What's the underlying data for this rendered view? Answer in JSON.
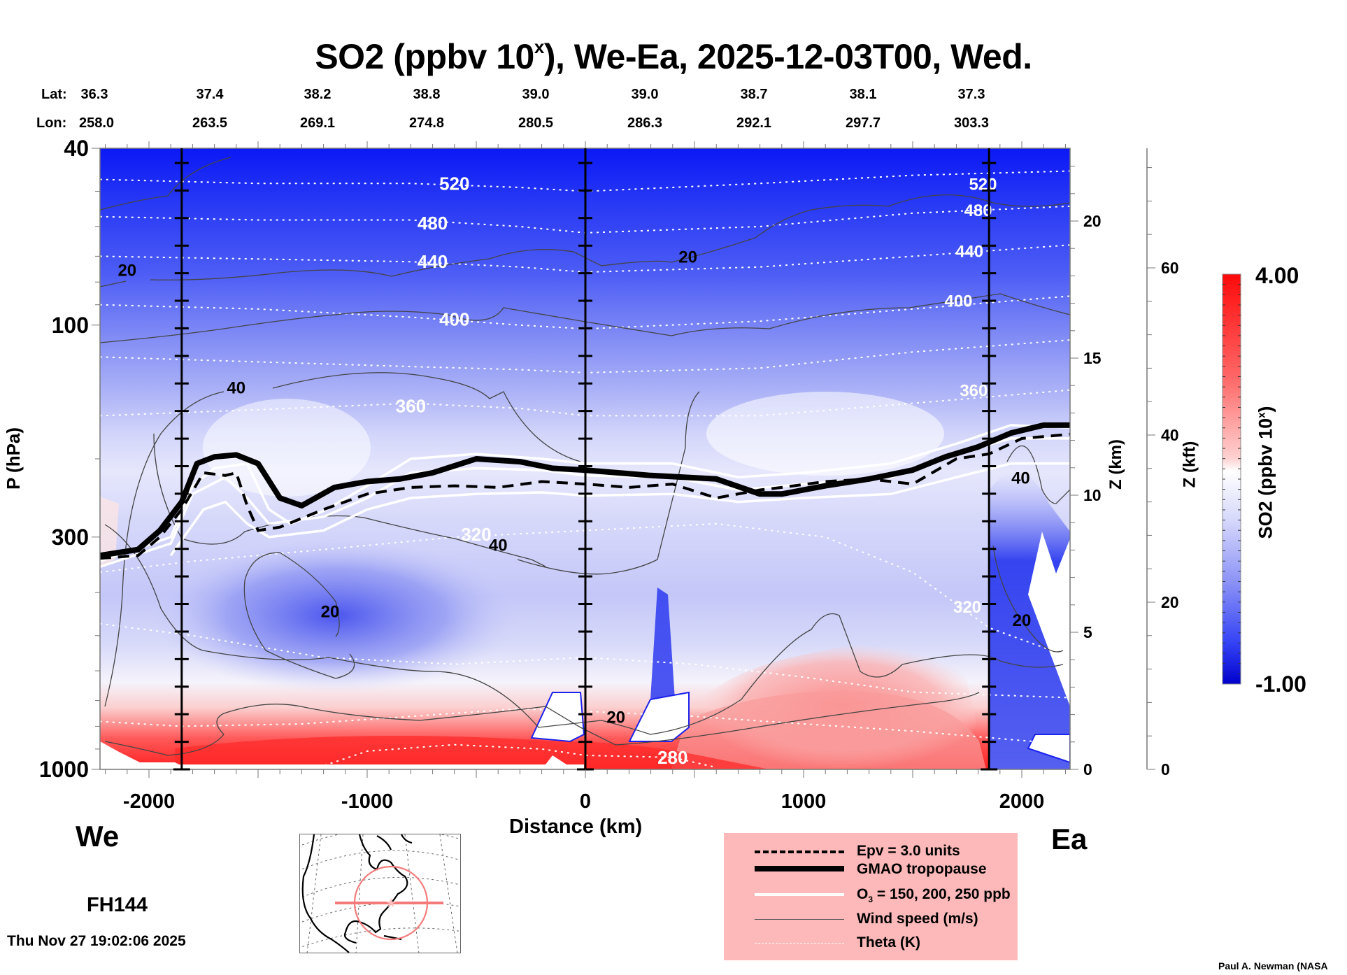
{
  "chart_data": {
    "type": "heatmap",
    "title": "SO2 (ppbv 10",
    "title_sup": "x",
    "title_rest": "), We-Ea, 2025-12-03T00, Wed.",
    "xlabel": "Distance (km)",
    "ylabel": "P (hPa)",
    "y2label": "Z (km)",
    "y3label": "Z (kft)",
    "xlim": [
      -2225,
      2225
    ],
    "ylim_hPa": [
      1000,
      40
    ],
    "yscale": "log",
    "x_ticks": [
      -2000,
      -1000,
      0,
      1000,
      2000
    ],
    "x_tick_labels": [
      "-2000",
      "-1000",
      "0",
      "1000",
      "2000"
    ],
    "y_ticks": [
      40,
      100,
      300,
      1000
    ],
    "y_tick_labels": [
      "40",
      "100",
      "300",
      "1000"
    ],
    "z_km_ticks": [
      0,
      5,
      10,
      15,
      20
    ],
    "z_km_tick_labels": [
      "0",
      "5",
      "10",
      "15",
      "20"
    ],
    "z_kft_ticks": [
      0,
      20,
      40,
      60
    ],
    "z_kft_tick_labels": [
      "0",
      "20",
      "40",
      "60"
    ],
    "colorbar": {
      "label": "SO2 (ppbv 10",
      "label_sup": "x",
      "label_end": ")",
      "min": -1.0,
      "max": 4.0,
      "min_label": "-1.00",
      "max_label": "4.00",
      "low_color": "#0000cc",
      "mid_color": "#ffffff",
      "high_color": "#ff0000",
      "n_levels": 40
    },
    "west_label": "We",
    "east_label": "Ea",
    "forecast_hour": "FH144",
    "lat_label": "Lat:",
    "lon_label": "Lon:",
    "lat": [
      "36.3",
      "37.4",
      "38.2",
      "38.8",
      "39.0",
      "39.0",
      "38.7",
      "38.1",
      "37.3"
    ],
    "lon": [
      "258.0",
      "263.5",
      "269.1",
      "274.8",
      "280.5",
      "286.3",
      "292.1",
      "297.7",
      "303.3"
    ],
    "lat_lon_distance_km": [
      -2225,
      -1725,
      -1320,
      -915,
      -510,
      -100,
      305,
      710,
      1115
    ],
    "vertical_markers_km": [
      -1850,
      0,
      1850
    ],
    "theta_levels": [
      {
        "label": "520",
        "points": [
          [
            -2225,
            47
          ],
          [
            -1500,
            48
          ],
          [
            -800,
            48
          ],
          [
            -300,
            49
          ],
          [
            0,
            50
          ],
          [
            800,
            48
          ],
          [
            1500,
            46
          ],
          [
            2225,
            45
          ]
        ],
        "label_at": [
          -600,
          48
        ]
      },
      {
        "label": "480",
        "points": [
          [
            -2225,
            57
          ],
          [
            -1500,
            58
          ],
          [
            -800,
            58
          ],
          [
            -300,
            60
          ],
          [
            0,
            62
          ],
          [
            800,
            60
          ],
          [
            1500,
            56
          ],
          [
            2225,
            54
          ]
        ],
        "label_at": [
          -700,
          59
        ]
      },
      {
        "label": "440",
        "points": [
          [
            -2225,
            70
          ],
          [
            -1500,
            71
          ],
          [
            -800,
            72
          ],
          [
            -300,
            74
          ],
          [
            0,
            76
          ],
          [
            800,
            74
          ],
          [
            1500,
            70
          ],
          [
            2225,
            66
          ]
        ],
        "label_at": [
          -700,
          72
        ]
      },
      {
        "label": "400",
        "points": [
          [
            -2225,
            90
          ],
          [
            -1500,
            92
          ],
          [
            -800,
            96
          ],
          [
            -300,
            100
          ],
          [
            0,
            102
          ],
          [
            800,
            98
          ],
          [
            1500,
            92
          ],
          [
            2225,
            86
          ]
        ],
        "label_at": [
          -600,
          97
        ]
      },
      {
        "label": "",
        "points": [
          [
            -2225,
            118
          ],
          [
            -1500,
            121
          ],
          [
            -800,
            124
          ],
          [
            -300,
            126
          ],
          [
            0,
            128
          ],
          [
            800,
            125
          ],
          [
            1500,
            115
          ],
          [
            2225,
            108
          ]
        ],
        "label_at": null
      },
      {
        "label": "360",
        "points": [
          [
            -2225,
            160
          ],
          [
            -1500,
            155
          ],
          [
            -800,
            150
          ],
          [
            -300,
            154
          ],
          [
            0,
            160
          ],
          [
            800,
            160
          ],
          [
            1500,
            150
          ],
          [
            2225,
            140
          ]
        ],
        "label_at": [
          -800,
          152
        ]
      },
      {
        "label": "320",
        "points": [
          [
            -2225,
            360
          ],
          [
            -1800,
            340
          ],
          [
            -1200,
            320
          ],
          [
            -600,
            300
          ],
          [
            0,
            290
          ],
          [
            600,
            280
          ],
          [
            1100,
            300
          ],
          [
            1500,
            360
          ],
          [
            1850,
            480
          ],
          [
            2225,
            560
          ]
        ],
        "label_at": [
          -500,
          296
        ]
      },
      {
        "label": "",
        "points": [
          [
            -2225,
            470
          ],
          [
            -1800,
            500
          ],
          [
            -1200,
            560
          ],
          [
            -600,
            580
          ],
          [
            0,
            560
          ],
          [
            500,
            580
          ],
          [
            1000,
            620
          ],
          [
            1500,
            670
          ],
          [
            2225,
            690
          ]
        ],
        "label_at": null
      },
      {
        "label": "",
        "points": [
          [
            -2225,
            780
          ],
          [
            -1850,
            800
          ],
          [
            -1300,
            790
          ],
          [
            -800,
            760
          ],
          [
            -300,
            730
          ],
          [
            0,
            740
          ],
          [
            500,
            760
          ],
          [
            1000,
            790
          ],
          [
            1500,
            820
          ],
          [
            2225,
            880
          ]
        ],
        "label_at": null
      },
      {
        "label": "280",
        "points": [
          [
            -1250,
            1000
          ],
          [
            -1000,
            910
          ],
          [
            -600,
            880
          ],
          [
            -200,
            900
          ],
          [
            0,
            930
          ],
          [
            400,
            940
          ],
          [
            600,
            990
          ]
        ],
        "label_at": [
          400,
          940
        ]
      }
    ],
    "tropopause": [
      [
        -2225,
        330
      ],
      [
        -2050,
        320
      ],
      [
        -1950,
        290
      ],
      [
        -1850,
        250
      ],
      [
        -1780,
        205
      ],
      [
        -1700,
        198
      ],
      [
        -1600,
        196
      ],
      [
        -1500,
        205
      ],
      [
        -1400,
        245
      ],
      [
        -1300,
        255
      ],
      [
        -1150,
        232
      ],
      [
        -1000,
        225
      ],
      [
        -850,
        222
      ],
      [
        -700,
        215
      ],
      [
        -500,
        200
      ],
      [
        -300,
        203
      ],
      [
        -150,
        210
      ],
      [
        0,
        212
      ],
      [
        300,
        218
      ],
      [
        600,
        222
      ],
      [
        800,
        240
      ],
      [
        900,
        240
      ],
      [
        1100,
        230
      ],
      [
        1300,
        222
      ],
      [
        1500,
        212
      ],
      [
        1650,
        198
      ],
      [
        1800,
        188
      ],
      [
        1950,
        175
      ],
      [
        2100,
        168
      ],
      [
        2225,
        168
      ]
    ],
    "epv_3": [
      [
        -2225,
        335
      ],
      [
        -2050,
        330
      ],
      [
        -1950,
        300
      ],
      [
        -1850,
        260
      ],
      [
        -1750,
        215
      ],
      [
        -1650,
        218
      ],
      [
        -1600,
        215
      ],
      [
        -1550,
        255
      ],
      [
        -1500,
        290
      ],
      [
        -1400,
        285
      ],
      [
        -1200,
        260
      ],
      [
        -1000,
        240
      ],
      [
        -800,
        232
      ],
      [
        -600,
        230
      ],
      [
        -400,
        232
      ],
      [
        -200,
        225
      ],
      [
        0,
        228
      ],
      [
        200,
        232
      ],
      [
        400,
        228
      ],
      [
        600,
        245
      ],
      [
        800,
        235
      ],
      [
        900,
        232
      ],
      [
        1100,
        225
      ],
      [
        1300,
        222
      ],
      [
        1500,
        228
      ],
      [
        1700,
        200
      ],
      [
        1850,
        195
      ],
      [
        2000,
        180
      ],
      [
        2225,
        176
      ]
    ],
    "o3_contours": [
      [
        [
          -2225,
          340
        ],
        [
          -1900,
          300
        ],
        [
          -1800,
          230
        ],
        [
          -1700,
          210
        ],
        [
          -1550,
          205
        ],
        [
          -1450,
          260
        ],
        [
          -1350,
          280
        ],
        [
          -1200,
          262
        ],
        [
          -1000,
          230
        ],
        [
          -800,
          200
        ],
        [
          -500,
          195
        ],
        [
          -200,
          200
        ],
        [
          0,
          205
        ],
        [
          400,
          205
        ],
        [
          700,
          220
        ],
        [
          1000,
          215
        ],
        [
          1400,
          205
        ],
        [
          1700,
          185
        ],
        [
          1950,
          168
        ],
        [
          2225,
          170
        ]
      ],
      [
        [
          -2225,
          350
        ],
        [
          -1900,
          310
        ],
        [
          -1800,
          240
        ],
        [
          -1650,
          220
        ],
        [
          -1550,
          245
        ],
        [
          -1450,
          280
        ],
        [
          -1200,
          270
        ],
        [
          -1000,
          245
        ],
        [
          -800,
          215
        ],
        [
          -500,
          210
        ],
        [
          -200,
          212
        ],
        [
          0,
          218
        ],
        [
          400,
          220
        ],
        [
          700,
          235
        ],
        [
          1000,
          228
        ],
        [
          1400,
          220
        ],
        [
          1700,
          195
        ],
        [
          1950,
          180
        ],
        [
          2225,
          180
        ]
      ],
      [
        [
          -1900,
          330
        ],
        [
          -1750,
          260
        ],
        [
          -1650,
          250
        ],
        [
          -1550,
          280
        ],
        [
          -1450,
          300
        ],
        [
          -1200,
          290
        ],
        [
          -1000,
          260
        ],
        [
          -800,
          245
        ],
        [
          -500,
          240
        ],
        [
          -200,
          238
        ],
        [
          0,
          242
        ],
        [
          400,
          240
        ],
        [
          700,
          250
        ],
        [
          1000,
          245
        ],
        [
          1400,
          240
        ],
        [
          1700,
          220
        ],
        [
          1950,
          205
        ],
        [
          2225,
          205
        ]
      ]
    ],
    "wind_speed_labels": [
      {
        "label": "20",
        "at": [
          -2100,
          75
        ]
      },
      {
        "label": "20",
        "at": [
          470,
          70
        ]
      },
      {
        "label": "40",
        "at": [
          -1600,
          138
        ]
      },
      {
        "label": "40",
        "at": [
          -400,
          312
        ]
      },
      {
        "label": "20",
        "at": [
          -1170,
          440
        ]
      },
      {
        "label": "20",
        "at": [
          140,
          760
        ]
      },
      {
        "label": "40",
        "at": [
          1995,
          220
        ]
      },
      {
        "label": "20",
        "at": [
          2000,
          460
        ]
      }
    ],
    "so2_features": [
      {
        "desc": "stratosphere strongly negative (deep blue) at top",
        "value_range": [
          -1.0,
          -0.3
        ]
      },
      {
        "desc": "upper troposphere near zero (white-light blue)",
        "value_range": [
          0.5,
          1.6
        ]
      },
      {
        "desc": "mid-troposphere minimum near -1200 km, 500 hPa",
        "value_range": [
          -0.4,
          0.4
        ]
      },
      {
        "desc": "boundary layer maxima (red) 600-1000 hPa",
        "value_range": [
          2.5,
          4.0
        ]
      }
    ]
  },
  "legend": {
    "items": [
      {
        "label": "Epv = 3.0 units",
        "style": "dashed"
      },
      {
        "label": "GMAO tropopause",
        "style": "thick"
      },
      {
        "label": "O",
        "sub": "3",
        "label_rest": " = 150, 200, 250 ppb",
        "style": "white"
      },
      {
        "label": "Wind speed (m/s)",
        "style": "thin"
      },
      {
        "label": "Theta (K)",
        "style": "dotted"
      }
    ]
  },
  "footer": {
    "timestamp": "Thu Nov 27 19:02:06 2025",
    "credit": "Paul A. Newman (NASA"
  },
  "colors": {
    "legend_bg": "#fdb9b9",
    "map_circle": "#f47a7a",
    "wind": "#444444",
    "theta": "#ffffff"
  }
}
